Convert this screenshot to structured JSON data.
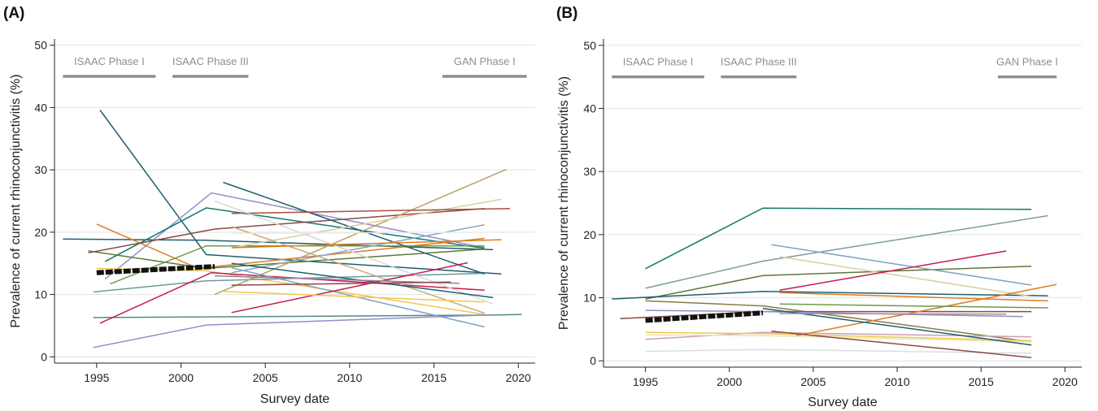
{
  "chart_data": [
    {
      "panel_label": "(A)",
      "type": "line",
      "xlabel": "Survey date",
      "ylabel": "Prevalence of current rhinoconjunctivitis (%)",
      "xlim": [
        1992.5,
        2021
      ],
      "ylim": [
        -1,
        51
      ],
      "xticks": [
        1995,
        2000,
        2005,
        2010,
        2015,
        2020
      ],
      "yticks": [
        0,
        10,
        20,
        30,
        40,
        50
      ],
      "grid": "horizontal",
      "phases": [
        {
          "label": "ISAAC Phase I",
          "x_start": 1993,
          "x_end": 1998.5
        },
        {
          "label": "ISAAC Phase III",
          "x_start": 1999.5,
          "x_end": 2004
        },
        {
          "label": "GAN Phase I",
          "x_start": 2015.5,
          "x_end": 2020.5
        }
      ],
      "phase_level": 45,
      "series": [
        {
          "color": "#1f5f6e",
          "x": [
            1995.2,
            2001.5,
            2019
          ],
          "y": [
            39.6,
            16.4,
            13.3
          ]
        },
        {
          "color": "#1f5f6e",
          "x": [
            1993,
            2001.5,
            2018.5
          ],
          "y": [
            18.9,
            18.7,
            17.2
          ]
        },
        {
          "color": "#8e8fc7",
          "x": [
            1995.5,
            2001.8,
            2018
          ],
          "y": [
            12.5,
            26.3,
            17.5
          ]
        },
        {
          "color": "#137a6c",
          "x": [
            1995.5,
            2001.5,
            2018
          ],
          "y": [
            15.3,
            23.9,
            17.4
          ]
        },
        {
          "color": "#e07a1f",
          "x": [
            1995,
            2001,
            2018
          ],
          "y": [
            21.3,
            14.2,
            19.0
          ]
        },
        {
          "color": "#8b4a44",
          "x": [
            1994.5,
            2002,
            2018
          ],
          "y": [
            16.7,
            20.5,
            23.8
          ]
        },
        {
          "color": "#597a3a",
          "x": [
            1994.5,
            2001.5,
            2018
          ],
          "y": [
            17.0,
            14.2,
            17.3
          ]
        },
        {
          "color": "#6d9a4a",
          "x": [
            1995.8,
            2001.5,
            2018
          ],
          "y": [
            11.7,
            17.8,
            17.8
          ]
        },
        {
          "color": "#f2c74e",
          "x": [
            1995,
            2001.5,
            2018
          ],
          "y": [
            14.2,
            13.8,
            6.8
          ]
        },
        {
          "color": "#6e9a9c",
          "x": [
            1994.8,
            2001.5,
            2018
          ],
          "y": [
            10.4,
            12.2,
            13.4
          ]
        },
        {
          "color": "#4e8a8a",
          "x": [
            1994.8,
            2018.5,
            2020.2
          ],
          "y": [
            6.3,
            6.7,
            6.8
          ]
        },
        {
          "color": "#c51b50",
          "x": [
            1995.2,
            2001.8,
            2018
          ],
          "y": [
            5.4,
            13.5,
            10.7
          ]
        },
        {
          "color": "#8e8fc7",
          "x": [
            1994.8,
            2001.5,
            2018
          ],
          "y": [
            1.5,
            5.1,
            6.7
          ]
        },
        {
          "color": "#1f5f6e",
          "x": [
            2002.5,
            2018
          ],
          "y": [
            28.0,
            13.3
          ]
        },
        {
          "color": "#b9a060",
          "x": [
            2002,
            2019.3
          ],
          "y": [
            10.0,
            30.1
          ]
        },
        {
          "color": "#d8cf9e",
          "x": [
            2003,
            2019
          ],
          "y": [
            17.5,
            25.3
          ]
        },
        {
          "color": "#7fa6c0",
          "x": [
            2003,
            2018
          ],
          "y": [
            13.5,
            21.2
          ]
        },
        {
          "color": "#a84e3e",
          "x": [
            2003,
            2019.5
          ],
          "y": [
            23.0,
            23.8
          ]
        },
        {
          "color": "#d9d9d9",
          "x": [
            2002,
            2018.5
          ],
          "y": [
            25.0,
            8.5
          ]
        },
        {
          "color": "#c8a97a",
          "x": [
            2003,
            2018
          ],
          "y": [
            20.9,
            7.0
          ]
        },
        {
          "color": "#1f5f6e",
          "x": [
            2003,
            2018.5
          ],
          "y": [
            15.0,
            9.5
          ]
        },
        {
          "color": "#7fa6c0",
          "x": [
            2003,
            2018
          ],
          "y": [
            14.3,
            4.8
          ]
        },
        {
          "color": "#c51b50",
          "x": [
            2003,
            2017
          ],
          "y": [
            7.1,
            15.1
          ]
        },
        {
          "color": "#f2c74e",
          "x": [
            2002.5,
            2018
          ],
          "y": [
            10.5,
            8.8
          ]
        },
        {
          "color": "#9a7f9e",
          "x": [
            2002,
            2016.5
          ],
          "y": [
            13.0,
            11.8
          ]
        },
        {
          "color": "#e07a1f",
          "x": [
            2003,
            2019
          ],
          "y": [
            17.5,
            18.8
          ]
        },
        {
          "color": "#ececec",
          "x": [
            2003,
            2019.5
          ],
          "y": [
            19.8,
            20.0
          ]
        },
        {
          "color": "#8b4a44",
          "x": [
            2003,
            2016
          ],
          "y": [
            11.5,
            12.0
          ]
        }
      ],
      "mean_trend": {
        "x": [
          1995,
          2002
        ],
        "y": [
          13.5,
          14.5
        ],
        "color": "#111111"
      }
    },
    {
      "panel_label": "(B)",
      "type": "line",
      "xlabel": "Survey date",
      "ylabel": "Prevalence of current rhinoconjunctivitis (%)",
      "xlim": [
        1992.5,
        2021
      ],
      "ylim": [
        -1,
        51
      ],
      "xticks": [
        1995,
        2000,
        2005,
        2010,
        2015,
        2020
      ],
      "yticks": [
        0,
        10,
        20,
        30,
        40,
        50
      ],
      "grid": "horizontal",
      "phases": [
        {
          "label": "ISAAC Phase I",
          "x_start": 1993,
          "x_end": 1998.5
        },
        {
          "label": "ISAAC Phase III",
          "x_start": 1999.5,
          "x_end": 2004
        },
        {
          "label": "GAN Phase I",
          "x_start": 2016,
          "x_end": 2019.5
        }
      ],
      "phase_level": 45,
      "series": [
        {
          "color": "#137a6c",
          "x": [
            1995,
            2002,
            2018
          ],
          "y": [
            14.6,
            24.2,
            24.0
          ]
        },
        {
          "color": "#7c9c9c",
          "x": [
            1995,
            2002,
            2019
          ],
          "y": [
            11.5,
            15.8,
            23.0
          ]
        },
        {
          "color": "#597a3a",
          "x": [
            1995,
            2002,
            2018
          ],
          "y": [
            9.8,
            13.5,
            15.0
          ]
        },
        {
          "color": "#1f5f6e",
          "x": [
            1993,
            2002,
            2019
          ],
          "y": [
            9.8,
            11.0,
            10.3
          ]
        },
        {
          "color": "#8a7a48",
          "x": [
            1995,
            2002,
            2018
          ],
          "y": [
            9.5,
            8.7,
            3.0
          ]
        },
        {
          "color": "#8b4a44",
          "x": [
            1993.5,
            2002,
            2018
          ],
          "y": [
            6.7,
            7.8,
            7.8
          ]
        },
        {
          "color": "#8e8fc7",
          "x": [
            1995,
            2002,
            2017.5
          ],
          "y": [
            8.0,
            7.8,
            7.0
          ]
        },
        {
          "color": "#c9a0b0",
          "x": [
            1995,
            2002,
            2018
          ],
          "y": [
            3.4,
            4.5,
            3.8
          ]
        },
        {
          "color": "#f2c74e",
          "x": [
            1995,
            2002,
            2018
          ],
          "y": [
            4.5,
            4.3,
            3.2
          ]
        },
        {
          "color": "#e6e6b6",
          "x": [
            1995,
            2002,
            2018
          ],
          "y": [
            4.1,
            4.0,
            3.0
          ]
        },
        {
          "color": "#d7e0e0",
          "x": [
            1995,
            2002,
            2018
          ],
          "y": [
            1.5,
            1.8,
            1.2
          ]
        },
        {
          "color": "#7fa6c0",
          "x": [
            2002.5,
            2018
          ],
          "y": [
            18.4,
            12.0
          ]
        },
        {
          "color": "#d8cf9e",
          "x": [
            2003,
            2018
          ],
          "y": [
            16.5,
            10.2
          ]
        },
        {
          "color": "#c51b50",
          "x": [
            2003,
            2016.5
          ],
          "y": [
            11.2,
            17.4
          ]
        },
        {
          "color": "#e07a1f",
          "x": [
            2003,
            2019
          ],
          "y": [
            10.8,
            9.5
          ]
        },
        {
          "color": "#e07a1f",
          "x": [
            2004,
            2019.5
          ],
          "y": [
            4.0,
            12.1
          ]
        },
        {
          "color": "#6d9a4a",
          "x": [
            2003,
            2019
          ],
          "y": [
            9.0,
            8.4
          ]
        },
        {
          "color": "#1f5f6e",
          "x": [
            2002,
            2018
          ],
          "y": [
            8.3,
            2.5
          ]
        },
        {
          "color": "#8b4a44",
          "x": [
            2002.5,
            2018
          ],
          "y": [
            4.7,
            0.5
          ]
        },
        {
          "color": "#a88a9a",
          "x": [
            2003,
            2016.5
          ],
          "y": [
            7.5,
            7.4
          ]
        }
      ],
      "mean_trend": {
        "x": [
          1995,
          2002
        ],
        "y": [
          6.4,
          7.6
        ],
        "color": "#111111"
      }
    }
  ]
}
